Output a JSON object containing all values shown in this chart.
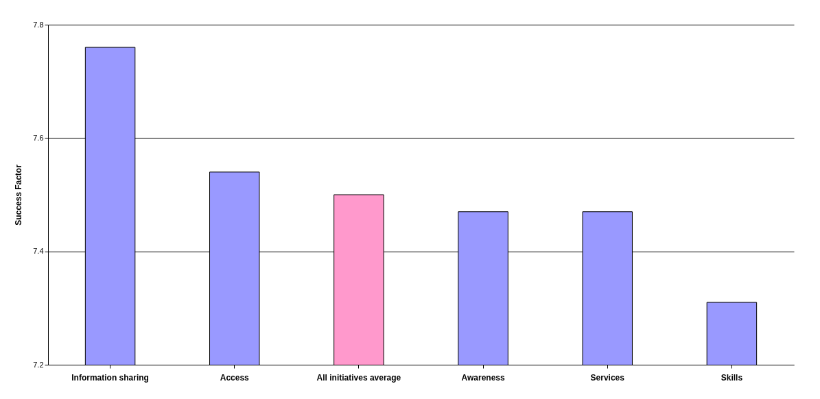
{
  "chart_data": {
    "type": "bar",
    "ylabel": "Success Factor",
    "categories": [
      "Information sharing",
      "Access",
      "All initiatives average",
      "Awareness",
      "Services",
      "Skills"
    ],
    "values": [
      7.76,
      7.54,
      7.5,
      7.47,
      7.47,
      7.31
    ],
    "colors": [
      "#9999ff",
      "#9999ff",
      "#ff99cc",
      "#9999ff",
      "#9999ff",
      "#9999ff"
    ],
    "ylim": [
      7.2,
      7.8
    ],
    "yticks": [
      7.2,
      7.4,
      7.6,
      7.8
    ],
    "grid": "y"
  }
}
